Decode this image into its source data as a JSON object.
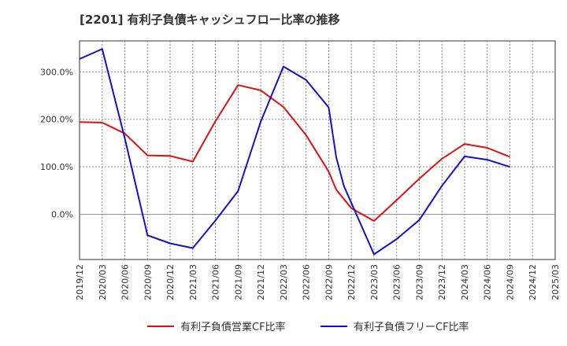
{
  "chart_data": {
    "type": "line",
    "title": "[2201]  有利子負債キャッシュフロー比率の推移",
    "xlabel": "",
    "ylabel": "",
    "ylim": [
      -95,
      365
    ],
    "yticks": [
      0,
      100,
      200,
      300
    ],
    "ytick_labels": [
      "0.0%",
      "100.0%",
      "200.0%",
      "300.0%"
    ],
    "categories": [
      "2019/12",
      "2020/03",
      "2020/06",
      "2020/09",
      "2020/12",
      "2021/03",
      "2021/06",
      "2021/09",
      "2021/12",
      "2022/03",
      "2022/06",
      "2022/09",
      "2022/12",
      "2023/03",
      "2023/06",
      "2023/09",
      "2023/12",
      "2024/03",
      "2024/06",
      "2024/09",
      "2024/12",
      "2025/03"
    ],
    "grid": true,
    "legend_position": "bottom",
    "series": [
      {
        "name": "有利子負債営業CF比率",
        "color": "#dd1111",
        "points": [
          {
            "x": "2019/12",
            "y": 194
          },
          {
            "x": "2020/03",
            "y": 193
          },
          {
            "x": "2020/06",
            "y": 170
          },
          {
            "x": "2020/09",
            "y": 124
          },
          {
            "x": "2020/12",
            "y": 123
          },
          {
            "x": "2021/03",
            "y": 111
          },
          {
            "x": "2021/06",
            "y": 196
          },
          {
            "x": "2021/09",
            "y": 272
          },
          {
            "x": "2021/12",
            "y": 261
          },
          {
            "x": "2022/03",
            "y": 226
          },
          {
            "x": "2022/06",
            "y": 167
          },
          {
            "x": "2022/09",
            "y": 90
          },
          {
            "x": "2022/10",
            "y": 52
          },
          {
            "x": "2022/12",
            "y": 13
          },
          {
            "x": "2023/03",
            "y": -14
          },
          {
            "x": "2023/06",
            "y": 30
          },
          {
            "x": "2023/09",
            "y": 75
          },
          {
            "x": "2023/12",
            "y": 117
          },
          {
            "x": "2024/03",
            "y": 148
          },
          {
            "x": "2024/06",
            "y": 140
          },
          {
            "x": "2024/09",
            "y": 121
          }
        ]
      },
      {
        "name": "有利子負債フリーCF比率",
        "color": "#1111cc",
        "points": [
          {
            "x": "2019/12",
            "y": 327
          },
          {
            "x": "2020/03",
            "y": 348
          },
          {
            "x": "2020/06",
            "y": 160
          },
          {
            "x": "2020/09",
            "y": -44
          },
          {
            "x": "2020/12",
            "y": -61
          },
          {
            "x": "2021/03",
            "y": -71
          },
          {
            "x": "2021/06",
            "y": -13
          },
          {
            "x": "2021/09",
            "y": 49
          },
          {
            "x": "2021/12",
            "y": 195
          },
          {
            "x": "2022/03",
            "y": 311
          },
          {
            "x": "2022/06",
            "y": 283
          },
          {
            "x": "2022/09",
            "y": 225
          },
          {
            "x": "2022/10",
            "y": 120
          },
          {
            "x": "2022/11",
            "y": 60
          },
          {
            "x": "2023/03",
            "y": -84
          },
          {
            "x": "2023/06",
            "y": -52
          },
          {
            "x": "2023/09",
            "y": -12
          },
          {
            "x": "2023/12",
            "y": 60
          },
          {
            "x": "2024/03",
            "y": 122
          },
          {
            "x": "2024/06",
            "y": 115
          },
          {
            "x": "2024/09",
            "y": 100
          }
        ]
      }
    ]
  }
}
